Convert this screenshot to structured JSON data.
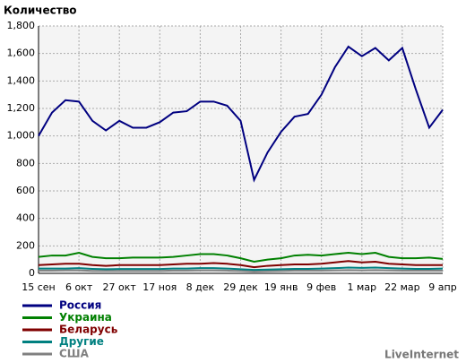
{
  "chart_data": {
    "type": "line",
    "title": "Количество",
    "credit": "LiveInternet",
    "categories": [
      "15 сен",
      null,
      null,
      "6 окт",
      null,
      null,
      "27 окт",
      null,
      null,
      "17 ноя",
      null,
      null,
      "8 дек",
      null,
      null,
      "29 дек",
      null,
      null,
      "19 янв",
      null,
      null,
      "9 фев",
      null,
      null,
      "1 мар",
      null,
      null,
      "22 мар",
      null,
      null,
      "9 апр"
    ],
    "series": [
      {
        "name": "Россия",
        "color": "#000080",
        "values": [
          1000,
          1170,
          1260,
          1250,
          1110,
          1040,
          1110,
          1060,
          1060,
          1100,
          1170,
          1180,
          1250,
          1250,
          1220,
          1110,
          680,
          880,
          1030,
          1140,
          1160,
          1300,
          1500,
          1650,
          1580,
          1640,
          1550,
          1640,
          1340,
          1060,
          1190
        ]
      },
      {
        "name": "Украина",
        "color": "#008000",
        "values": [
          120,
          130,
          130,
          150,
          120,
          110,
          110,
          115,
          115,
          115,
          120,
          130,
          140,
          140,
          130,
          110,
          85,
          100,
          110,
          130,
          135,
          130,
          140,
          150,
          140,
          150,
          120,
          110,
          110,
          115,
          105
        ]
      },
      {
        "name": "Беларусь",
        "color": "#800000",
        "values": [
          60,
          65,
          70,
          70,
          60,
          55,
          60,
          60,
          60,
          60,
          65,
          70,
          70,
          75,
          70,
          60,
          45,
          55,
          60,
          65,
          65,
          70,
          80,
          90,
          80,
          85,
          70,
          65,
          60,
          60,
          60
        ]
      },
      {
        "name": "Другие",
        "color": "#008080",
        "values": [
          35,
          35,
          35,
          38,
          33,
          30,
          32,
          32,
          32,
          32,
          35,
          35,
          38,
          38,
          35,
          30,
          25,
          28,
          30,
          33,
          33,
          35,
          38,
          42,
          40,
          42,
          38,
          35,
          33,
          33,
          35
        ]
      },
      {
        "name": "США",
        "color": "#808080",
        "values": [
          20,
          20,
          22,
          22,
          18,
          18,
          18,
          18,
          18,
          18,
          20,
          20,
          22,
          22,
          20,
          18,
          14,
          16,
          18,
          20,
          20,
          20,
          22,
          24,
          22,
          24,
          22,
          20,
          20,
          20,
          20
        ]
      }
    ],
    "ylim": [
      0,
      1800
    ],
    "yticks": [
      0,
      200,
      400,
      600,
      800,
      {
        "value": 1000,
        "label": "1,000"
      },
      {
        "value": 1200,
        "label": "1,200"
      },
      {
        "value": 1400,
        "label": "1,400"
      },
      {
        "value": 1600,
        "label": "1,600"
      },
      {
        "value": 1800,
        "label": "1,800"
      }
    ],
    "grid": true
  }
}
